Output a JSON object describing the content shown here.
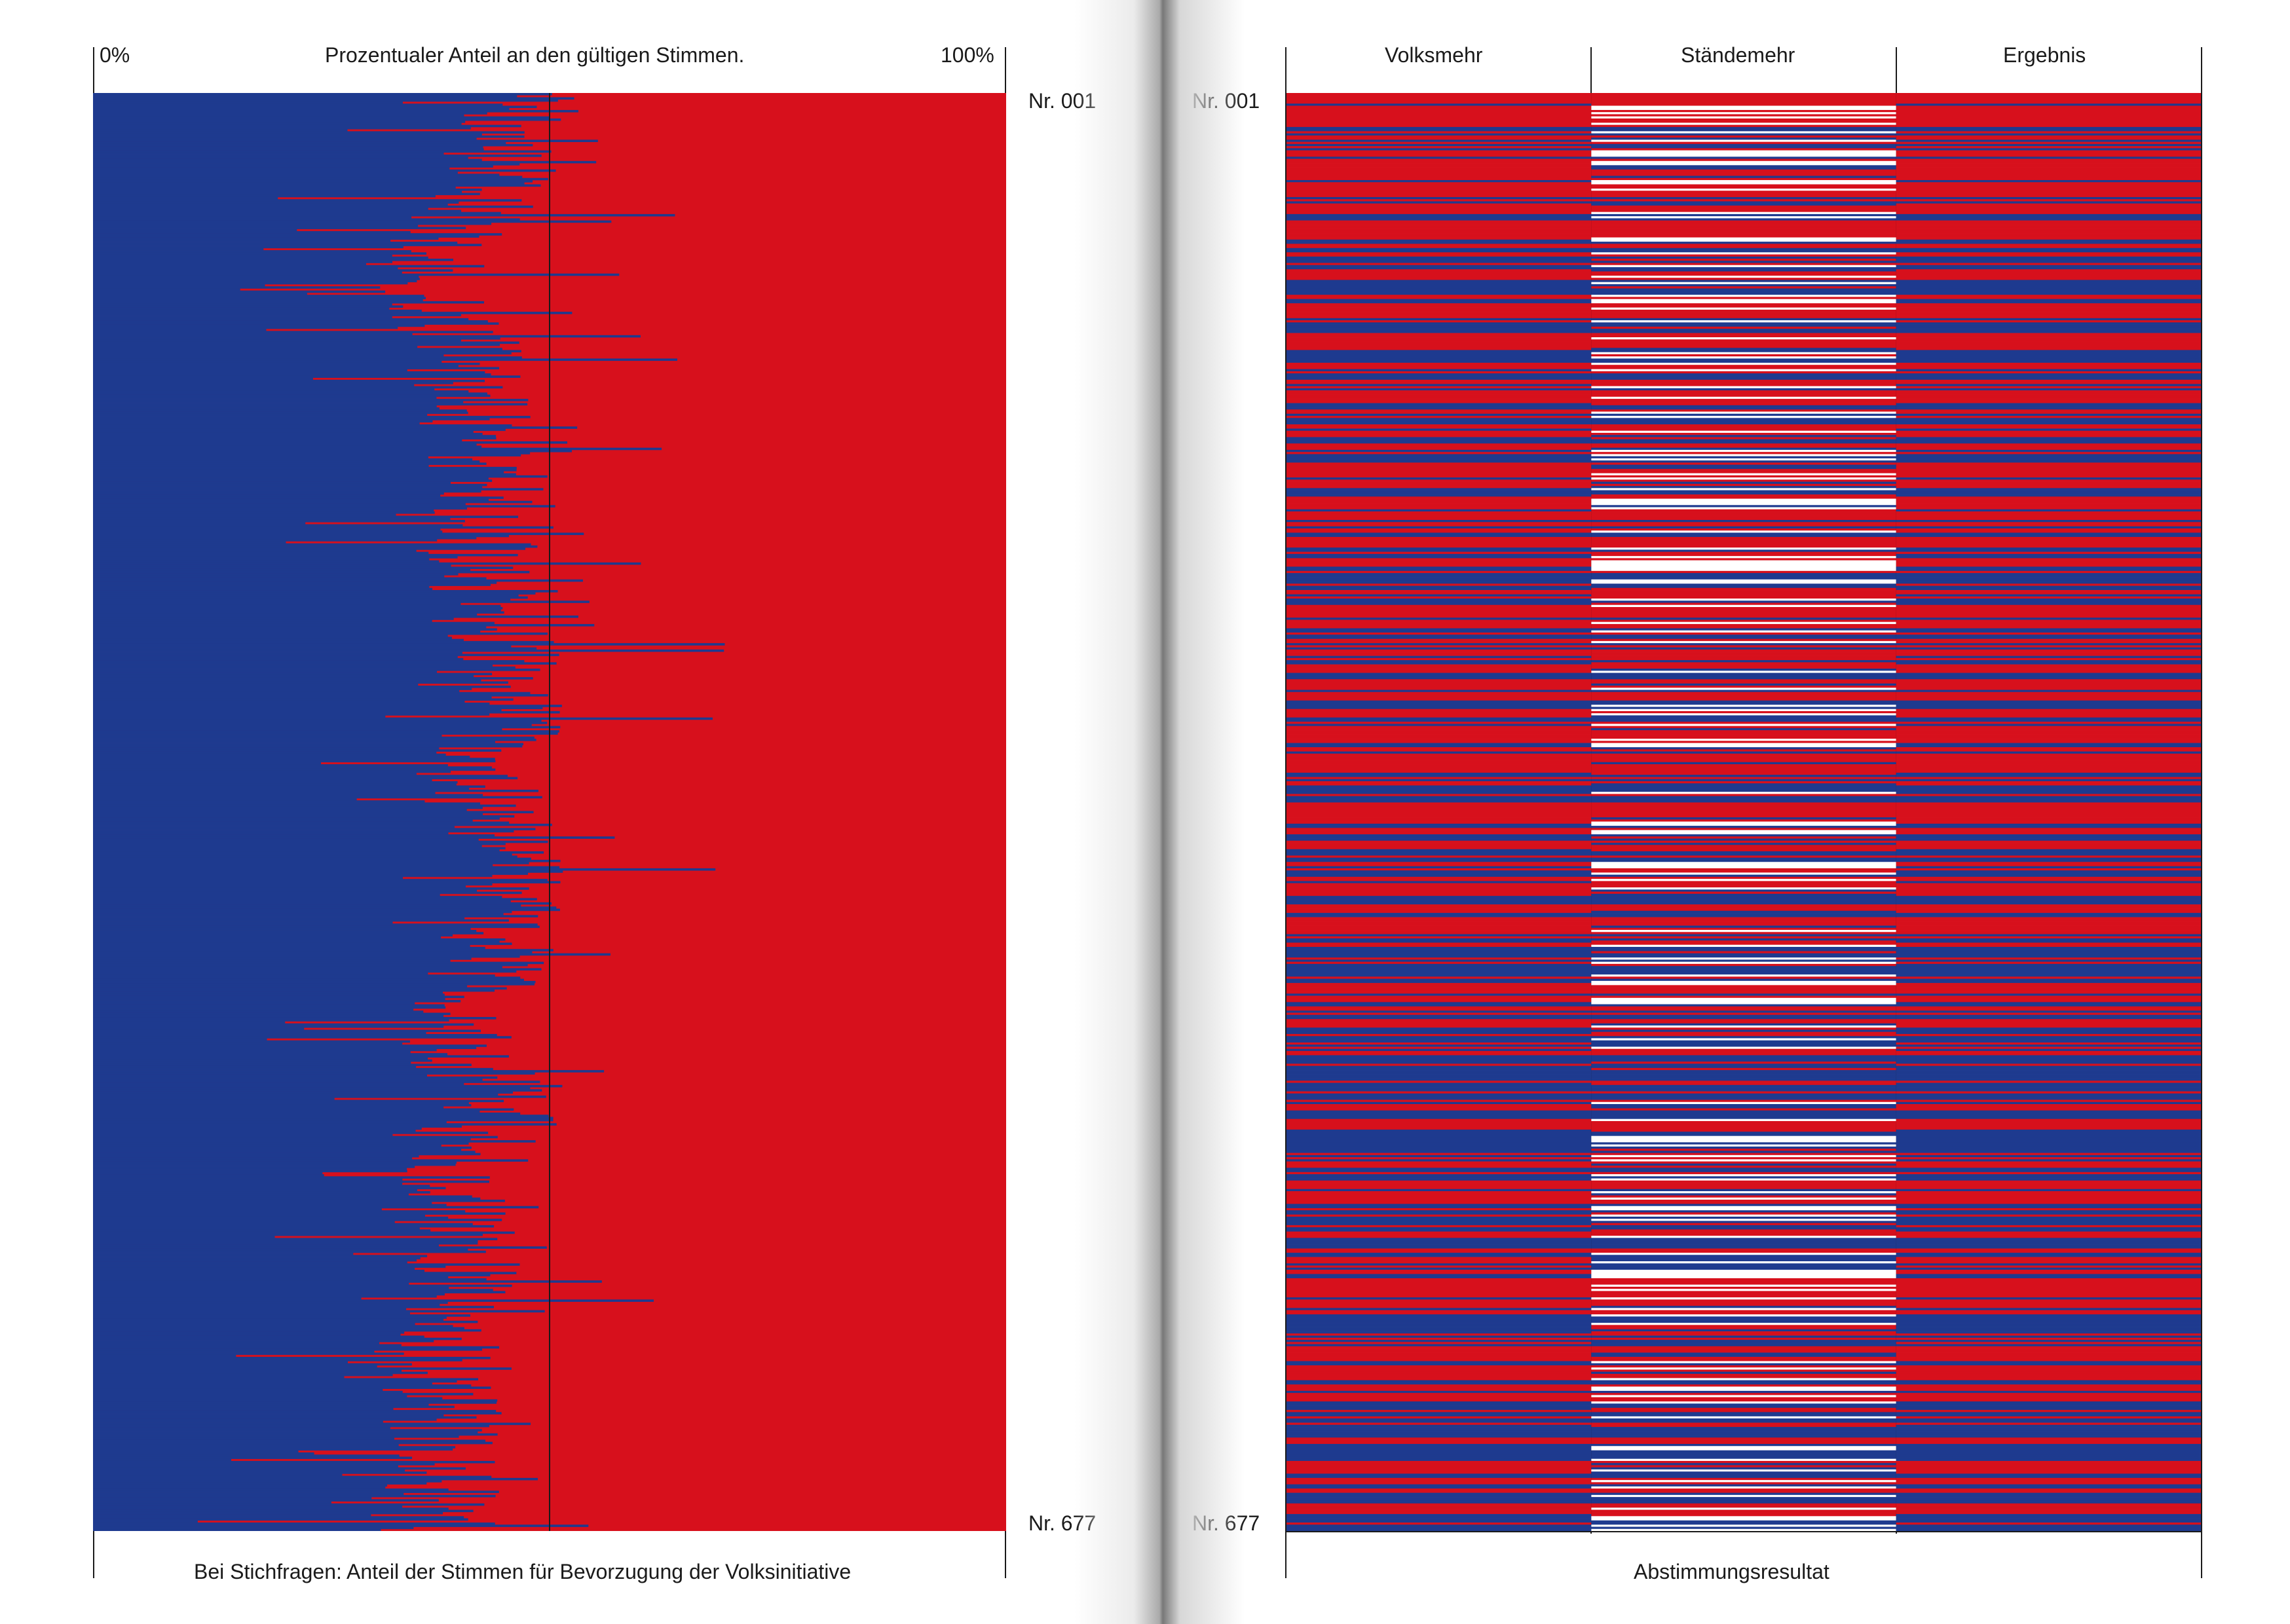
{
  "left_page": {
    "axis_min_label": "0%",
    "axis_title": "Prozentualer Anteil an den gültigen Stimmen.",
    "axis_max_label": "100%",
    "row_first_label": "Nr. 001",
    "row_last_label": "Nr. 677",
    "footer_label": "Bei Stichfragen: Anteil der Stimmen für Bevorzugung der Volksinitiative"
  },
  "right_page": {
    "col_headers": [
      "Volksmehr",
      "Ständemehr",
      "Ergebnis"
    ],
    "row_first_label": "Nr. 001",
    "row_last_label": "Nr. 677",
    "footer_label": "Abstimmungsresultat"
  },
  "colors": {
    "yes": "#1e3a8f",
    "no": "#d7101c",
    "none": "#ffffff",
    "rule": "#1a1a1a"
  },
  "chart_data": [
    {
      "type": "bar",
      "stacked": true,
      "orientation": "horizontal",
      "title": "Prozentualer Anteil an den gültigen Stimmen.",
      "xlim": [
        0,
        100
      ],
      "row_count": 677,
      "row_range": [
        "Nr. 001",
        "Nr. 677"
      ],
      "reference_line": 50,
      "series": [
        {
          "color": "#1e3a8f"
        },
        {
          "color": "#d7101c"
        }
      ],
      "profile_rows": [
        1,
        40,
        80,
        120,
        160,
        200,
        240,
        280,
        320,
        360,
        400,
        440,
        480,
        520,
        560,
        600,
        640,
        677
      ],
      "profile_yes_percent": [
        48,
        44,
        36,
        40,
        42,
        44,
        43,
        47,
        42,
        45,
        44,
        40,
        44,
        39,
        41,
        37,
        39,
        37
      ]
    },
    {
      "type": "heatmap",
      "title": "Abstimmungsresultat",
      "columns": [
        "Volksmehr",
        "Ständemehr",
        "Ergebnis"
      ],
      "row_count": 677,
      "row_range": [
        "Nr. 001",
        "Nr. 677"
      ],
      "categories": [
        {
          "color": "#1e3a8f"
        },
        {
          "color": "#d7101c"
        },
        {
          "color": "#ffffff"
        }
      ],
      "approx_share_yes": 0.35,
      "approx_share_no_result": 0.22
    }
  ]
}
